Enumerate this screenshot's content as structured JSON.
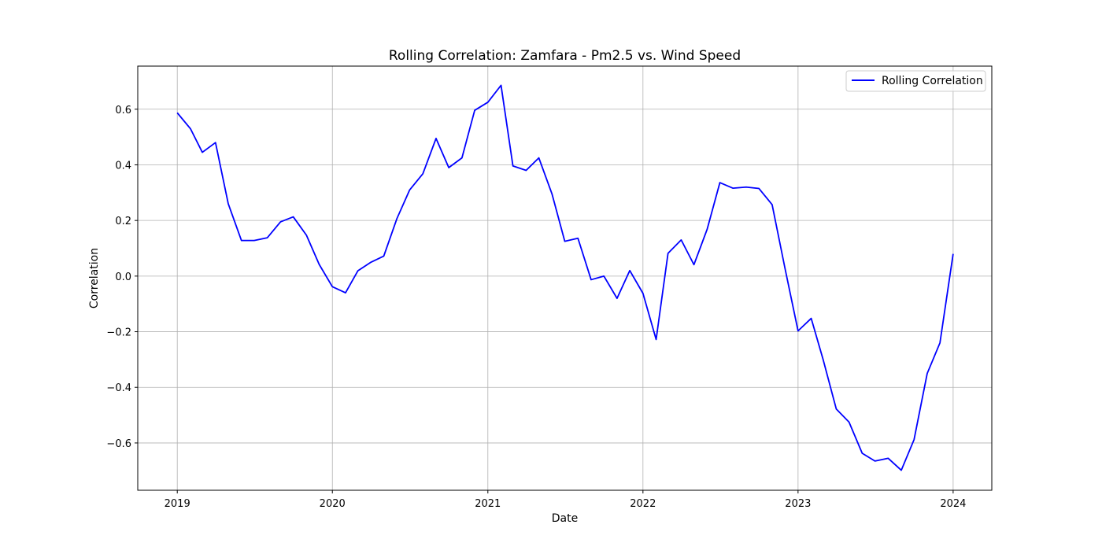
{
  "chart_data": {
    "type": "line",
    "title": "Rolling Correlation: Zamfara - Pm2.5 vs. Wind Speed",
    "xlabel": "Date",
    "ylabel": "Correlation",
    "xlim": [
      "2018-09-30",
      "2024-04-01"
    ],
    "ylim": [
      -0.77,
      0.755
    ],
    "x_ticks": [
      "2019",
      "2020",
      "2021",
      "2022",
      "2023",
      "2024"
    ],
    "y_ticks": [
      "−0.6",
      "−0.4",
      "−0.2",
      "0.0",
      "0.2",
      "0.4",
      "0.6"
    ],
    "y_tick_values": [
      -0.6,
      -0.4,
      -0.2,
      0.0,
      0.2,
      0.4,
      0.6
    ],
    "grid": true,
    "legend_position": "top-right",
    "series": [
      {
        "name": "Rolling Correlation",
        "color": "#0000ff",
        "x": [
          "2019-01",
          "2019-02",
          "2019-03",
          "2019-04",
          "2019-05",
          "2019-06",
          "2019-07",
          "2019-08",
          "2019-09",
          "2019-10",
          "2019-11",
          "2019-12",
          "2020-01",
          "2020-02",
          "2020-03",
          "2020-04",
          "2020-05",
          "2020-06",
          "2020-07",
          "2020-08",
          "2020-09",
          "2020-10",
          "2020-11",
          "2020-12",
          "2021-01",
          "2021-02",
          "2021-03",
          "2021-04",
          "2021-05",
          "2021-06",
          "2021-07",
          "2021-08",
          "2021-09",
          "2021-10",
          "2021-11",
          "2021-12",
          "2022-01",
          "2022-02",
          "2022-03",
          "2022-04",
          "2022-05",
          "2022-06",
          "2022-07",
          "2022-08",
          "2022-09",
          "2022-10",
          "2022-11",
          "2022-12",
          "2023-01",
          "2023-02",
          "2023-03",
          "2023-04",
          "2023-05",
          "2023-06",
          "2023-07",
          "2023-08",
          "2023-09",
          "2023-10",
          "2023-11",
          "2023-12",
          "2024-01"
        ],
        "y": [
          0.587,
          0.53,
          0.445,
          0.48,
          0.26,
          0.128,
          0.128,
          0.138,
          0.195,
          0.213,
          0.147,
          0.042,
          -0.038,
          -0.06,
          0.019,
          0.05,
          0.072,
          0.207,
          0.31,
          0.368,
          0.495,
          0.39,
          0.425,
          0.596,
          0.625,
          0.686,
          0.396,
          0.38,
          0.425,
          0.295,
          0.125,
          0.136,
          -0.013,
          0.0,
          -0.08,
          0.02,
          -0.062,
          -0.228,
          0.082,
          0.13,
          0.041,
          0.168,
          0.336,
          0.316,
          0.32,
          0.315,
          0.257,
          0.03,
          -0.197,
          -0.152,
          -0.3,
          -0.478,
          -0.525,
          -0.637,
          -0.665,
          -0.655,
          -0.698,
          -0.588,
          -0.35,
          -0.24,
          0.08
        ]
      }
    ]
  }
}
